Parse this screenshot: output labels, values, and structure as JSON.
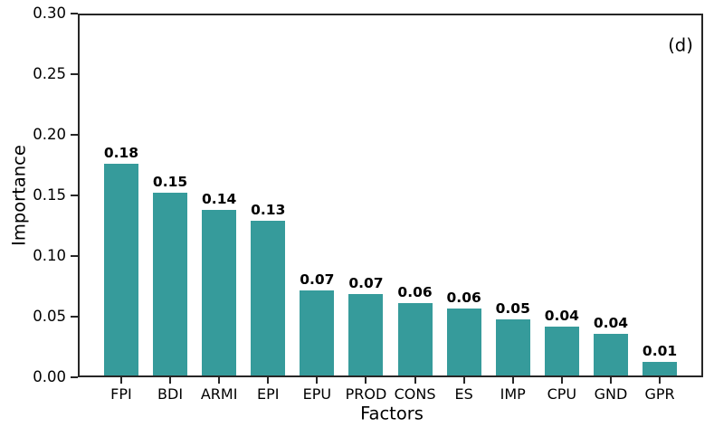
{
  "chart_data": {
    "type": "bar",
    "title": "",
    "xlabel": "Factors",
    "ylabel": "Importance",
    "panel_label": "(d)",
    "categories": [
      "FPI",
      "BDI",
      "ARMI",
      "EPI",
      "EPU",
      "PROD",
      "CONS",
      "ES",
      "IMP",
      "CPU",
      "GND",
      "GPR"
    ],
    "values": [
      0.18,
      0.15,
      0.14,
      0.13,
      0.07,
      0.07,
      0.06,
      0.06,
      0.05,
      0.04,
      0.04,
      0.01
    ],
    "bar_heights": [
      0.176,
      0.152,
      0.138,
      0.129,
      0.072,
      0.069,
      0.061,
      0.057,
      0.048,
      0.042,
      0.036,
      0.013
    ],
    "bar_labels": [
      "0.18",
      "0.15",
      "0.14",
      "0.13",
      "0.07",
      "0.07",
      "0.06",
      "0.06",
      "0.05",
      "0.04",
      "0.04",
      "0.01"
    ],
    "ylim": [
      0.0,
      0.3
    ],
    "ytick_labels": [
      "0.00",
      "0.05",
      "0.10",
      "0.15",
      "0.20",
      "0.25",
      "0.30"
    ],
    "ytick_values": [
      0.0,
      0.05,
      0.1,
      0.15,
      0.2,
      0.25,
      0.3
    ],
    "grid": false,
    "legend": null,
    "bar_color": "#369b9b",
    "spine_color": "#262626",
    "text_color": "#000000"
  }
}
